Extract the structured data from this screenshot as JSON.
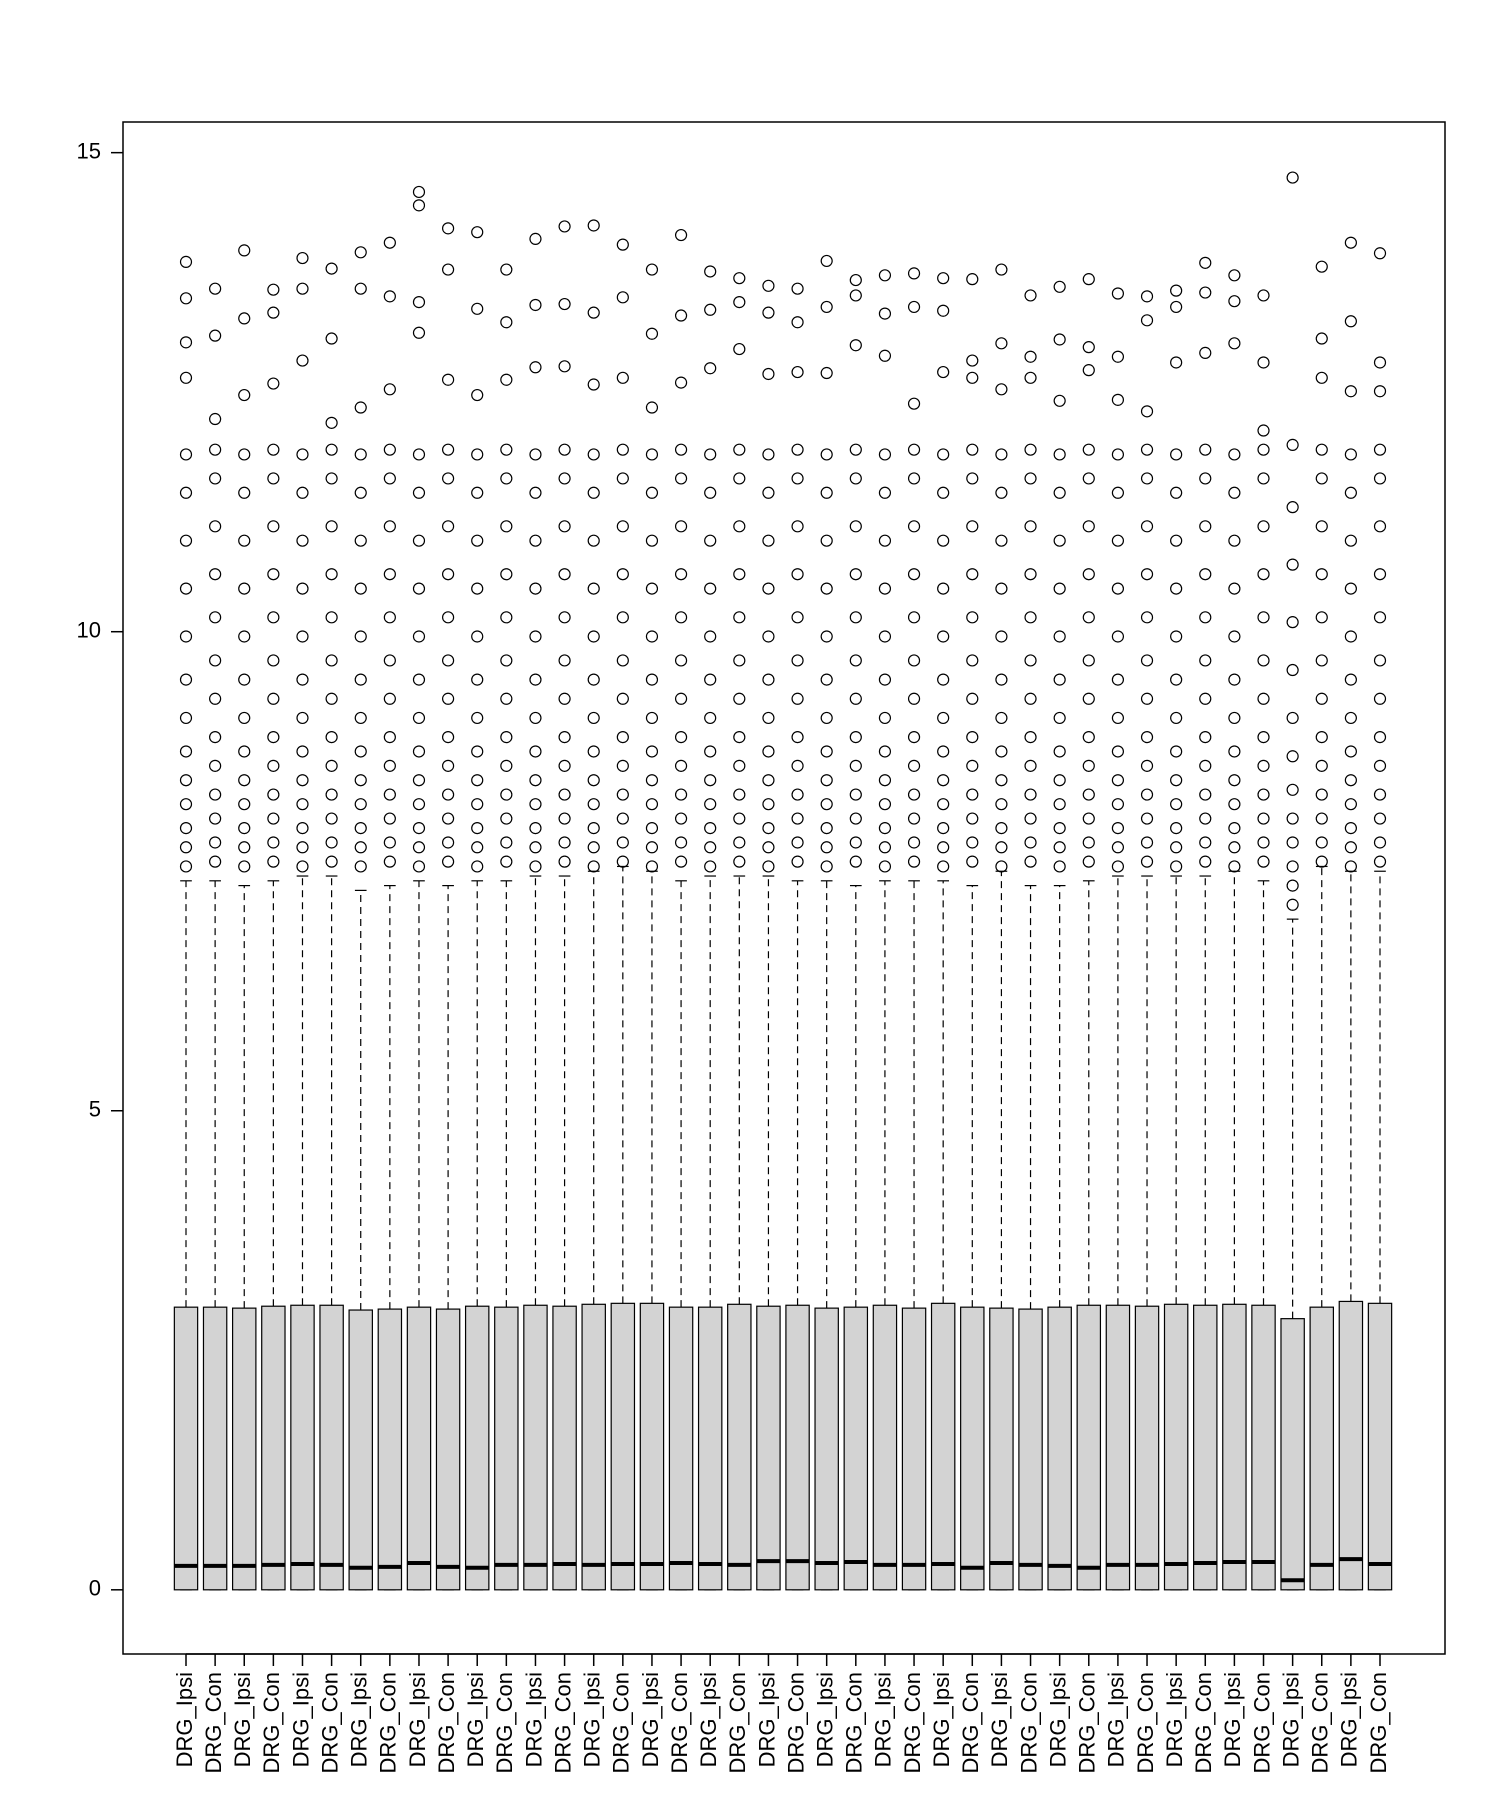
{
  "chart_data": {
    "type": "boxplot",
    "categories": [
      "DRG_Ipsi",
      "DRG_Con",
      "DRG_Ipsi",
      "DRG_Con",
      "DRG_Ipsi",
      "DRG_Con",
      "DRG_Ipsi",
      "DRG_Con",
      "DRG_Ipsi",
      "DRG_Con",
      "DRG_Ipsi",
      "DRG_Con",
      "DRG_Ipsi",
      "DRG_Con",
      "DRG_Ipsi",
      "DRG_Con",
      "DRG_Ipsi",
      "DRG_Con",
      "DRG_Ipsi",
      "DRG_Con",
      "DRG_Ipsi",
      "DRG_Con",
      "DRG_Ipsi",
      "DRG_Con",
      "DRG_Ipsi",
      "DRG_Con",
      "DRG_Ipsi",
      "DRG_Con",
      "DRG_Ipsi",
      "DRG_Con",
      "DRG_Ipsi",
      "DRG_Con",
      "DRG_Ipsi",
      "DRG_Con",
      "DRG_Ipsi",
      "DRG_Con",
      "DRG_Ipsi",
      "DRG_Con",
      "DRG_Ipsi",
      "DRG_Con",
      "DRG_Ipsi",
      "DRG_Con"
    ],
    "whisker_low": [
      0,
      0,
      0,
      0,
      0,
      0,
      0,
      0,
      0,
      0,
      0,
      0,
      0,
      0,
      0,
      0,
      0,
      0,
      0,
      0,
      0,
      0,
      0,
      0,
      0,
      0,
      0,
      0,
      0,
      0,
      0,
      0,
      0,
      0,
      0,
      0,
      0,
      0,
      0,
      0,
      0,
      0
    ],
    "q1": [
      0,
      0,
      0,
      0,
      0,
      0,
      0,
      0,
      0,
      0,
      0,
      0,
      0,
      0,
      0,
      0,
      0,
      0,
      0,
      0,
      0,
      0,
      0,
      0,
      0,
      0,
      0,
      0,
      0,
      0,
      0,
      0,
      0,
      0,
      0,
      0,
      0,
      0,
      0,
      0,
      0,
      0
    ],
    "median": [
      0.25,
      0.25,
      0.25,
      0.26,
      0.27,
      0.26,
      0.23,
      0.24,
      0.28,
      0.24,
      0.23,
      0.26,
      0.26,
      0.27,
      0.26,
      0.27,
      0.27,
      0.28,
      0.27,
      0.26,
      0.3,
      0.3,
      0.28,
      0.29,
      0.26,
      0.26,
      0.27,
      0.23,
      0.28,
      0.26,
      0.25,
      0.23,
      0.26,
      0.26,
      0.27,
      0.28,
      0.29,
      0.29,
      0.1,
      0.26,
      0.32,
      0.27
    ],
    "q3": [
      2.95,
      2.95,
      2.94,
      2.96,
      2.97,
      2.97,
      2.92,
      2.93,
      2.95,
      2.93,
      2.96,
      2.95,
      2.97,
      2.96,
      2.98,
      2.99,
      2.99,
      2.95,
      2.95,
      2.98,
      2.96,
      2.97,
      2.94,
      2.95,
      2.97,
      2.94,
      2.99,
      2.95,
      2.94,
      2.93,
      2.95,
      2.97,
      2.97,
      2.96,
      2.98,
      2.97,
      2.98,
      2.97,
      2.83,
      2.95,
      3.01,
      2.99
    ],
    "whisker_high": [
      7.4,
      7.4,
      7.35,
      7.4,
      7.45,
      7.45,
      7.3,
      7.35,
      7.4,
      7.35,
      7.4,
      7.4,
      7.45,
      7.45,
      7.5,
      7.55,
      7.5,
      7.4,
      7.45,
      7.45,
      7.45,
      7.4,
      7.4,
      7.35,
      7.4,
      7.4,
      7.4,
      7.35,
      7.5,
      7.35,
      7.35,
      7.4,
      7.45,
      7.45,
      7.45,
      7.45,
      7.5,
      7.4,
      7.0,
      7.55,
      7.5,
      7.5
    ],
    "outliers": [
      [
        7.55,
        7.75,
        7.95,
        8.2,
        8.45,
        8.75,
        9.1,
        9.5,
        9.95,
        10.45,
        10.95,
        11.45,
        11.85,
        12.65,
        13.02,
        13.48,
        13.86
      ],
      [
        7.6,
        7.8,
        8.05,
        8.3,
        8.6,
        8.9,
        9.3,
        9.7,
        10.15,
        10.6,
        11.1,
        11.6,
        11.9,
        12.22,
        13.09,
        13.58
      ],
      [
        7.55,
        7.75,
        7.95,
        8.2,
        8.45,
        8.75,
        9.1,
        9.5,
        9.95,
        10.45,
        10.95,
        11.45,
        11.85,
        12.47,
        13.27,
        13.98
      ],
      [
        7.6,
        7.8,
        8.05,
        8.3,
        8.6,
        8.9,
        9.3,
        9.7,
        10.15,
        10.6,
        11.1,
        11.6,
        11.9,
        12.59,
        13.33,
        13.57
      ],
      [
        7.55,
        7.75,
        7.95,
        8.2,
        8.45,
        8.75,
        9.1,
        9.5,
        9.95,
        10.45,
        10.95,
        11.45,
        11.85,
        12.83,
        13.58,
        13.9
      ],
      [
        7.6,
        7.8,
        8.05,
        8.3,
        8.6,
        8.9,
        9.3,
        9.7,
        10.15,
        10.6,
        11.1,
        11.6,
        11.9,
        12.18,
        13.06,
        13.79
      ],
      [
        7.55,
        7.75,
        7.95,
        8.2,
        8.45,
        8.75,
        9.1,
        9.5,
        9.95,
        10.45,
        10.95,
        11.45,
        11.85,
        12.34,
        13.58,
        13.96
      ],
      [
        7.6,
        7.8,
        8.05,
        8.3,
        8.6,
        8.9,
        9.3,
        9.7,
        10.15,
        10.6,
        11.1,
        11.6,
        11.9,
        12.53,
        13.5,
        14.06
      ],
      [
        7.55,
        7.75,
        7.95,
        8.2,
        8.45,
        8.75,
        9.1,
        9.5,
        9.95,
        10.45,
        10.95,
        11.45,
        11.85,
        13.12,
        13.44,
        14.45,
        14.59
      ],
      [
        7.6,
        7.8,
        8.05,
        8.3,
        8.6,
        8.9,
        9.3,
        9.7,
        10.15,
        10.6,
        11.1,
        11.6,
        11.9,
        12.63,
        13.78,
        14.21
      ],
      [
        7.55,
        7.75,
        7.95,
        8.2,
        8.45,
        8.75,
        9.1,
        9.5,
        9.95,
        10.45,
        10.95,
        11.45,
        11.85,
        12.47,
        13.37,
        14.17
      ],
      [
        7.6,
        7.8,
        8.05,
        8.3,
        8.6,
        8.9,
        9.3,
        9.7,
        10.15,
        10.6,
        11.1,
        11.6,
        11.9,
        12.63,
        13.23,
        13.78
      ],
      [
        7.55,
        7.75,
        7.95,
        8.2,
        8.45,
        8.75,
        9.1,
        9.5,
        9.95,
        10.45,
        10.95,
        11.45,
        11.85,
        12.76,
        13.41,
        14.1
      ],
      [
        7.6,
        7.8,
        8.05,
        8.3,
        8.6,
        8.9,
        9.3,
        9.7,
        10.15,
        10.6,
        11.1,
        11.6,
        11.9,
        12.77,
        13.42,
        14.23
      ],
      [
        7.55,
        7.75,
        7.95,
        8.2,
        8.45,
        8.75,
        9.1,
        9.5,
        9.95,
        10.45,
        10.95,
        11.45,
        11.85,
        12.58,
        13.33,
        14.24
      ],
      [
        7.6,
        7.8,
        8.05,
        8.3,
        8.6,
        8.9,
        9.3,
        9.7,
        10.15,
        10.6,
        11.1,
        11.6,
        11.9,
        12.65,
        13.49,
        14.04
      ],
      [
        7.55,
        7.75,
        7.95,
        8.2,
        8.45,
        8.75,
        9.1,
        9.5,
        9.95,
        10.45,
        10.95,
        11.45,
        11.85,
        12.34,
        13.11,
        13.78
      ],
      [
        7.6,
        7.8,
        8.05,
        8.3,
        8.6,
        8.9,
        9.3,
        9.7,
        10.15,
        10.6,
        11.1,
        11.6,
        11.9,
        12.6,
        13.3,
        14.14
      ],
      [
        7.55,
        7.75,
        7.95,
        8.2,
        8.45,
        8.75,
        9.1,
        9.5,
        9.95,
        10.45,
        10.95,
        11.45,
        11.85,
        12.75,
        13.36,
        13.76
      ],
      [
        7.6,
        7.8,
        8.05,
        8.3,
        8.6,
        8.9,
        9.3,
        9.7,
        10.15,
        10.6,
        11.1,
        11.6,
        11.9,
        12.95,
        13.44,
        13.69
      ],
      [
        7.55,
        7.75,
        7.95,
        8.2,
        8.45,
        8.75,
        9.1,
        9.5,
        9.95,
        10.45,
        10.95,
        11.45,
        11.85,
        12.69,
        13.33,
        13.61
      ],
      [
        7.6,
        7.8,
        8.05,
        8.3,
        8.6,
        8.9,
        9.3,
        9.7,
        10.15,
        10.6,
        11.1,
        11.6,
        11.9,
        12.71,
        13.23,
        13.58
      ],
      [
        7.55,
        7.75,
        7.95,
        8.2,
        8.45,
        8.75,
        9.1,
        9.5,
        9.95,
        10.45,
        10.95,
        11.45,
        11.85,
        12.7,
        13.39,
        13.87
      ],
      [
        7.6,
        7.8,
        8.05,
        8.3,
        8.6,
        8.9,
        9.3,
        9.7,
        10.15,
        10.6,
        11.1,
        11.6,
        11.9,
        12.99,
        13.51,
        13.67
      ],
      [
        7.55,
        7.75,
        7.95,
        8.2,
        8.45,
        8.75,
        9.1,
        9.5,
        9.95,
        10.45,
        10.95,
        11.45,
        11.85,
        12.88,
        13.32,
        13.72
      ],
      [
        7.6,
        7.8,
        8.05,
        8.3,
        8.6,
        8.9,
        9.3,
        9.7,
        10.15,
        10.6,
        11.1,
        11.6,
        11.9,
        12.38,
        13.39,
        13.74
      ],
      [
        7.55,
        7.75,
        7.95,
        8.2,
        8.45,
        8.75,
        9.1,
        9.5,
        9.95,
        10.45,
        10.95,
        11.45,
        11.85,
        12.71,
        13.35,
        13.69
      ],
      [
        7.6,
        7.8,
        8.05,
        8.3,
        8.6,
        8.9,
        9.3,
        9.7,
        10.15,
        10.6,
        11.1,
        11.6,
        11.9,
        12.65,
        12.83,
        13.68
      ],
      [
        7.55,
        7.75,
        7.95,
        8.2,
        8.45,
        8.75,
        9.1,
        9.5,
        9.95,
        10.45,
        10.95,
        11.45,
        11.85,
        12.53,
        13.01,
        13.78
      ],
      [
        7.6,
        7.8,
        8.05,
        8.3,
        8.6,
        8.9,
        9.3,
        9.7,
        10.15,
        10.6,
        11.1,
        11.6,
        11.9,
        12.65,
        12.87,
        13.51
      ],
      [
        7.55,
        7.75,
        7.95,
        8.2,
        8.45,
        8.75,
        9.1,
        9.5,
        9.95,
        10.45,
        10.95,
        11.45,
        11.85,
        12.41,
        13.05,
        13.6
      ],
      [
        7.6,
        7.8,
        8.05,
        8.3,
        8.6,
        8.9,
        9.3,
        9.7,
        10.15,
        10.6,
        11.1,
        11.6,
        11.9,
        12.73,
        12.97,
        13.68
      ],
      [
        7.55,
        7.75,
        7.95,
        8.2,
        8.45,
        8.75,
        9.1,
        9.5,
        9.95,
        10.45,
        10.95,
        11.45,
        11.85,
        12.42,
        12.87,
        13.53
      ],
      [
        7.6,
        7.8,
        8.05,
        8.3,
        8.6,
        8.9,
        9.3,
        9.7,
        10.15,
        10.6,
        11.1,
        11.6,
        11.9,
        12.3,
        13.25,
        13.5
      ],
      [
        7.55,
        7.75,
        7.95,
        8.2,
        8.45,
        8.75,
        9.1,
        9.5,
        9.95,
        10.45,
        10.95,
        11.45,
        11.85,
        12.81,
        13.39,
        13.56
      ],
      [
        7.6,
        7.8,
        8.05,
        8.3,
        8.6,
        8.9,
        9.3,
        9.7,
        10.15,
        10.6,
        11.1,
        11.6,
        11.9,
        12.91,
        13.54,
        13.85
      ],
      [
        7.55,
        7.75,
        7.95,
        8.2,
        8.45,
        8.75,
        9.1,
        9.5,
        9.95,
        10.45,
        10.95,
        11.45,
        11.85,
        13.01,
        13.45,
        13.72
      ],
      [
        7.6,
        7.8,
        8.05,
        8.3,
        8.6,
        8.9,
        9.3,
        9.7,
        10.15,
        10.6,
        11.1,
        11.6,
        11.9,
        12.1,
        12.81,
        13.51
      ],
      [
        7.15,
        7.35,
        7.55,
        7.8,
        8.05,
        8.35,
        8.7,
        9.1,
        9.6,
        10.1,
        10.7,
        11.3,
        11.95,
        14.74
      ],
      [
        7.6,
        7.8,
        8.05,
        8.3,
        8.6,
        8.9,
        9.3,
        9.7,
        10.15,
        10.6,
        11.1,
        11.6,
        11.9,
        12.65,
        13.06,
        13.81
      ],
      [
        7.55,
        7.75,
        7.95,
        8.2,
        8.45,
        8.75,
        9.1,
        9.5,
        9.95,
        10.45,
        10.95,
        11.45,
        11.85,
        12.51,
        13.24,
        14.06
      ],
      [
        7.6,
        7.8,
        8.05,
        8.3,
        8.6,
        8.9,
        9.3,
        9.7,
        10.15,
        10.6,
        11.1,
        11.6,
        11.9,
        12.51,
        12.81,
        13.95
      ]
    ],
    "box_color": "#d3d3d3",
    "ylim": [
      -0.67,
      15.32
    ],
    "yticks": [
      0,
      5,
      10,
      15
    ]
  }
}
